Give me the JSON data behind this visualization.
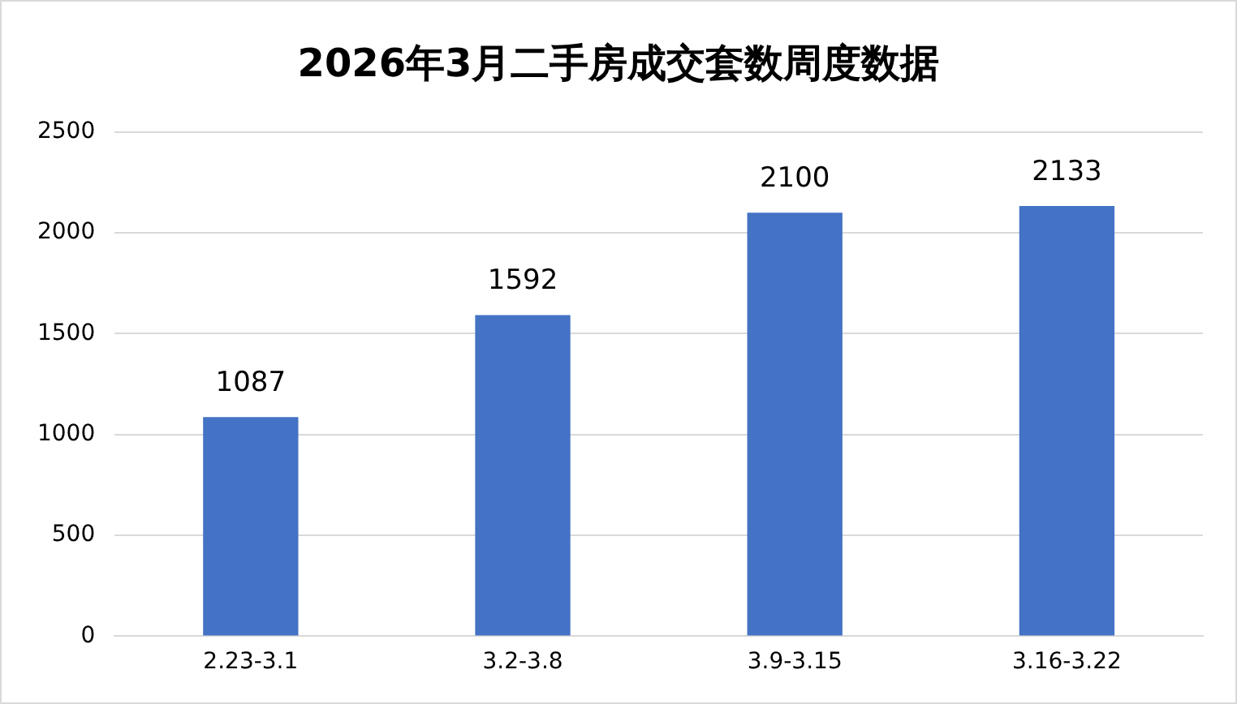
{
  "chart_data": {
    "type": "bar",
    "title": "2026年3月二手房成交套数周度数据",
    "categories": [
      "2.23-3.1",
      "3.2-3.8",
      "3.9-3.15",
      "3.16-3.22"
    ],
    "values": [
      1087,
      1592,
      2100,
      2133
    ],
    "color": "#4472c4",
    "ylim": [
      0,
      2500
    ],
    "yticks": [
      0,
      500,
      1000,
      1500,
      2000,
      2500
    ],
    "grid": "y",
    "data_labels": true,
    "legend": false
  }
}
